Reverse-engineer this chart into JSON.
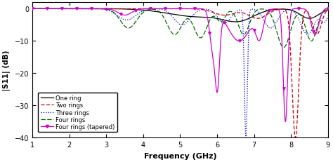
{
  "xlabel": "Frequency (GHz)",
  "ylabel": "|S11| (dB)",
  "xlim": [
    1,
    9
  ],
  "ylim": [
    -40,
    2
  ],
  "yticks": [
    0,
    -10,
    -20,
    -30,
    -40
  ],
  "xticks": [
    1,
    2,
    3,
    4,
    5,
    6,
    7,
    8,
    9
  ],
  "legend_entries": [
    "One ring",
    "Two rings",
    "Three rings",
    "Four rings",
    "Four rings (tapered)"
  ]
}
